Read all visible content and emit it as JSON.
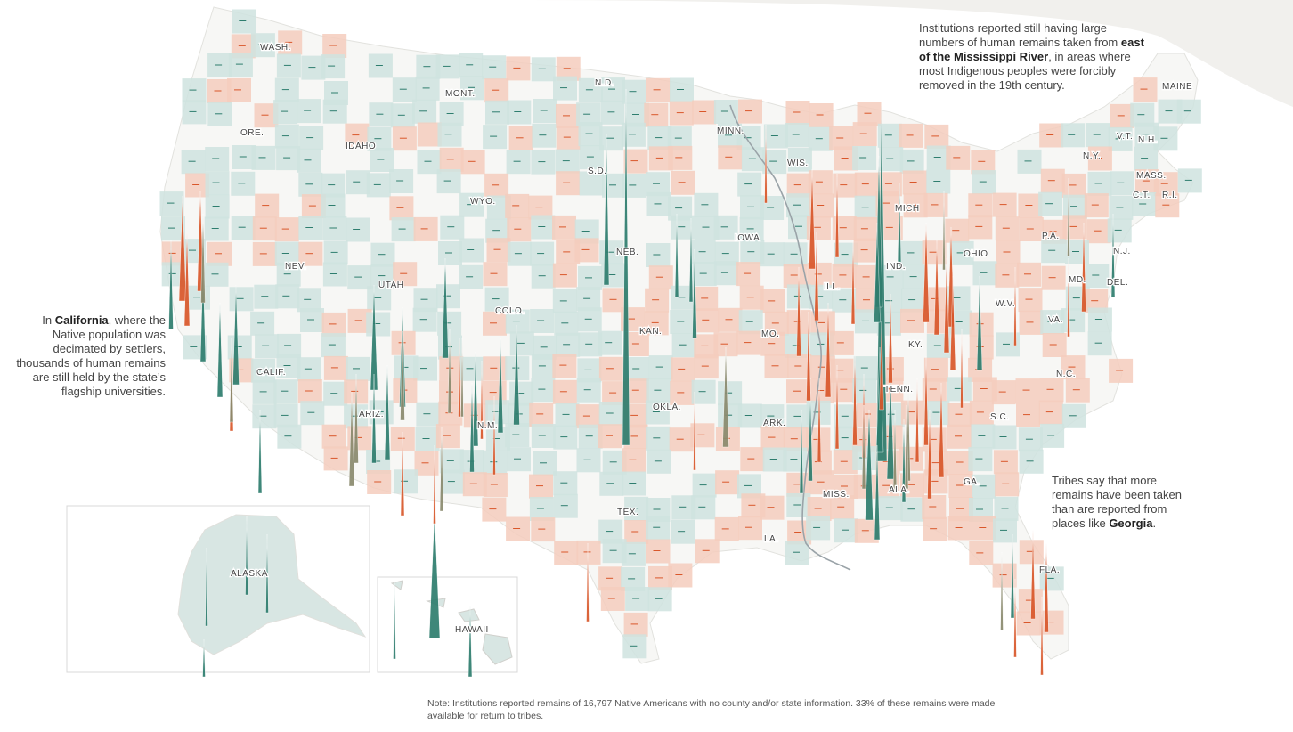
{
  "annotations": {
    "northeast": {
      "pre": "Institutions reported still having large numbers of human remains taken from ",
      "bold": "east of the Mississippi River",
      "post": ", in areas where most Indigenous peoples were forcibly removed in the 19th century."
    },
    "california": {
      "pre": "In ",
      "bold": "California",
      "post": ", where the Native population was decimated by settlers, thousands of human remains are still held by the state’s flagship universities."
    },
    "georgia": {
      "pre": "Tribes say that more remains have been taken than are reported from places like ",
      "bold": "Georgia",
      "post": "."
    }
  },
  "footnote": "Note: Institutions reported remains of 16,797 Native Americans with no county and/or state information. 33% of these remains were made available for return to tribes.",
  "colors": {
    "teal": "#2e7d6e",
    "teal_light": "#cfe3df",
    "orange": "#d9572a",
    "orange_light": "#f4cdbd",
    "gray_olive": "#8a8a6e",
    "land_empty": "#f7f7f5",
    "mississippi": "#9aa3a8"
  },
  "state_labels": [
    "WASH.",
    "MONT.",
    "N.D.",
    "MINN.",
    "MAINE",
    "ORE.",
    "IDAHO",
    "S.D.",
    "WIS.",
    "V.T.",
    "N.H.",
    "N.Y.",
    "MASS.",
    "WYO.",
    "MICH",
    "C.T.",
    "R.I.",
    "IOWA",
    "P.A.",
    "NEB.",
    "N.J.",
    "NEV.",
    "IND.",
    "OHIO",
    "UTAH",
    "ILL.",
    "DEL.",
    "MD.",
    "COLO.",
    "W.V.",
    "KAN.",
    "MO.",
    "VA.",
    "KY.",
    "CALIF.",
    "TENN.",
    "N.C.",
    "OKLA.",
    "ARK.",
    "S.C.",
    "ARIZ.",
    "N.M.",
    "MISS.",
    "ALA.",
    "GA.",
    "TEX.",
    "LA.",
    "FLA.",
    "ALASKA",
    "HAWAII"
  ],
  "map_symbols": {
    "teal_peaks": 40,
    "orange_peaks": 42,
    "olive_peaks": 16
  }
}
